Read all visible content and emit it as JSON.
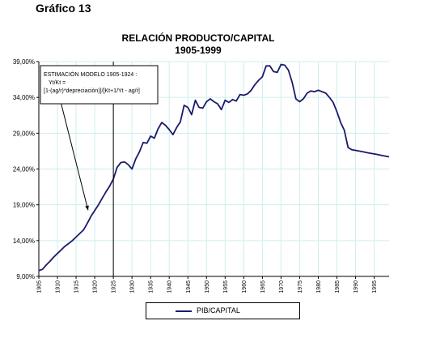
{
  "figure_label": "Gráfico 13",
  "chart_data": {
    "type": "line",
    "title": "RELACIÓN PRODUCTO/CAPITAL",
    "subtitle": "1905-1999",
    "xlabel": "",
    "ylabel": "",
    "ylim": [
      9,
      39
    ],
    "y_ticks": [
      "9,00%",
      "14,00%",
      "19,00%",
      "24,00%",
      "29,00%",
      "34,00%",
      "39,00%"
    ],
    "x_ticks": [
      "1905",
      "1910",
      "1915",
      "1920",
      "1925",
      "1930",
      "1935",
      "1940",
      "1945",
      "1950",
      "1955",
      "1960",
      "1965",
      "1970",
      "1975",
      "1980",
      "1985",
      "1990",
      "1995"
    ],
    "xlim": [
      1905,
      1999
    ],
    "grid": true,
    "line_color": "#1a1a6e",
    "legend_position": "bottom",
    "series": [
      {
        "name": "PIB/CAPITAL",
        "x": [
          1905,
          1906,
          1907,
          1908,
          1909,
          1910,
          1911,
          1912,
          1913,
          1914,
          1915,
          1916,
          1917,
          1918,
          1919,
          1920,
          1921,
          1922,
          1923,
          1924,
          1925,
          1926,
          1927,
          1928,
          1929,
          1930,
          1931,
          1932,
          1933,
          1934,
          1935,
          1936,
          1937,
          1938,
          1939,
          1940,
          1941,
          1942,
          1943,
          1944,
          1945,
          1946,
          1947,
          1948,
          1949,
          1950,
          1951,
          1952,
          1953,
          1954,
          1955,
          1956,
          1957,
          1958,
          1959,
          1960,
          1961,
          1962,
          1963,
          1964,
          1965,
          1966,
          1967,
          1968,
          1969,
          1970,
          1971,
          1972,
          1973,
          1974,
          1975,
          1976,
          1977,
          1978,
          1979,
          1980,
          1981,
          1982,
          1983,
          1984,
          1985,
          1986,
          1987,
          1988,
          1989,
          1990,
          1991,
          1992,
          1993,
          1994,
          1995,
          1996,
          1997,
          1998,
          1999
        ],
        "values": [
          9.8,
          10.0,
          10.6,
          11.1,
          11.7,
          12.2,
          12.7,
          13.2,
          13.6,
          14.0,
          14.5,
          15.0,
          15.5,
          16.4,
          17.4,
          18.2,
          19.0,
          19.9,
          20.8,
          21.6,
          22.6,
          24.2,
          24.9,
          25.0,
          24.6,
          24.0,
          25.4,
          26.4,
          27.7,
          27.6,
          28.6,
          28.3,
          29.6,
          30.5,
          30.1,
          29.5,
          28.8,
          29.8,
          30.6,
          32.9,
          32.6,
          31.6,
          33.6,
          32.6,
          32.5,
          33.4,
          33.8,
          33.4,
          33.1,
          32.3,
          33.6,
          33.3,
          33.7,
          33.5,
          34.4,
          34.3,
          34.5,
          35.0,
          35.8,
          36.4,
          36.9,
          38.4,
          38.4,
          37.6,
          37.5,
          38.6,
          38.5,
          37.8,
          36.1,
          33.8,
          33.4,
          33.8,
          34.6,
          34.9,
          34.8,
          35.0,
          34.8,
          34.6,
          34.0,
          33.3,
          32.0,
          30.5,
          29.4,
          27.0,
          26.7,
          26.6,
          26.5,
          26.4,
          26.3,
          26.2,
          26.1,
          26.0,
          25.9,
          25.8,
          25.7
        ]
      }
    ],
    "annotation": {
      "lines": [
        "ESTIMACIÓN MODELO 1905-1924 :",
        "Yt/Kt  =",
        "[1-(ag/r)*depreciación)]/[Kt+1/Yt - ag/r]"
      ],
      "arrow_to": {
        "x": 1918,
        "y": 17.9
      },
      "vertical_line_x": 1925
    }
  }
}
